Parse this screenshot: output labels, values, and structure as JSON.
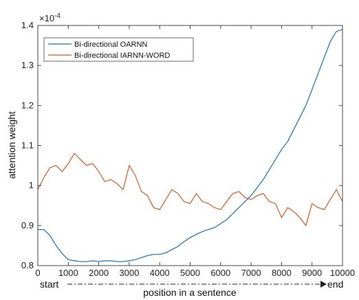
{
  "chart_data": {
    "type": "line",
    "xlabel": "position in a sentence",
    "ylabel": "attention weight",
    "y_multiplier": "×10",
    "y_multiplier_exp": "-4",
    "start_label": "start",
    "end_label": "end",
    "xlim": [
      0,
      10000
    ],
    "ylim": [
      0.8,
      1.4
    ],
    "xticks": [
      0,
      1000,
      2000,
      3000,
      4000,
      5000,
      6000,
      7000,
      8000,
      9000,
      10000
    ],
    "yticks": [
      0.8,
      0.9,
      1,
      1.1,
      1.2,
      1.3,
      1.4
    ],
    "legend_position": "top-left",
    "grid": false,
    "series": [
      {
        "name": "Bi-directional OARNN",
        "color": "#1f6fb4",
        "x": [
          0,
          200,
          400,
          600,
          800,
          1000,
          1200,
          1400,
          1600,
          1800,
          2000,
          2200,
          2400,
          2600,
          2800,
          3000,
          3200,
          3400,
          3600,
          3800,
          4000,
          4200,
          4400,
          4600,
          4800,
          5000,
          5200,
          5400,
          5600,
          5800,
          6000,
          6200,
          6400,
          6600,
          6800,
          7000,
          7200,
          7400,
          7600,
          7800,
          8000,
          8200,
          8400,
          8600,
          8800,
          9000,
          9200,
          9400,
          9600,
          9800,
          10000
        ],
        "y": [
          0.89,
          0.89,
          0.875,
          0.85,
          0.83,
          0.815,
          0.812,
          0.81,
          0.81,
          0.812,
          0.81,
          0.812,
          0.812,
          0.81,
          0.81,
          0.812,
          0.815,
          0.82,
          0.825,
          0.828,
          0.828,
          0.832,
          0.84,
          0.848,
          0.86,
          0.87,
          0.878,
          0.885,
          0.89,
          0.895,
          0.905,
          0.915,
          0.93,
          0.945,
          0.96,
          0.975,
          0.995,
          1.015,
          1.04,
          1.065,
          1.09,
          1.11,
          1.14,
          1.17,
          1.2,
          1.24,
          1.28,
          1.32,
          1.36,
          1.385,
          1.39
        ]
      },
      {
        "name": "Bi-directional IARNN-WORD",
        "color": "#d05a22",
        "x": [
          0,
          200,
          400,
          600,
          800,
          1000,
          1200,
          1400,
          1600,
          1800,
          2000,
          2200,
          2400,
          2600,
          2800,
          3000,
          3200,
          3400,
          3600,
          3800,
          4000,
          4200,
          4400,
          4600,
          4800,
          5000,
          5200,
          5400,
          5600,
          5800,
          6000,
          6200,
          6400,
          6600,
          6800,
          7000,
          7200,
          7400,
          7600,
          7800,
          8000,
          8200,
          8400,
          8600,
          8800,
          9000,
          9200,
          9400,
          9600,
          9800,
          10000
        ],
        "y": [
          0.99,
          1.02,
          1.045,
          1.05,
          1.035,
          1.055,
          1.08,
          1.065,
          1.05,
          1.055,
          1.035,
          1.01,
          1.015,
          1.005,
          0.99,
          1.05,
          1.025,
          0.985,
          0.975,
          0.945,
          0.94,
          0.965,
          0.99,
          0.98,
          0.96,
          0.955,
          0.98,
          0.96,
          0.955,
          0.945,
          0.94,
          0.96,
          0.98,
          0.985,
          0.97,
          0.965,
          0.975,
          0.98,
          0.96,
          0.955,
          0.92,
          0.945,
          0.935,
          0.92,
          0.9,
          0.955,
          0.945,
          0.94,
          0.965,
          0.99,
          0.96
        ]
      }
    ]
  }
}
